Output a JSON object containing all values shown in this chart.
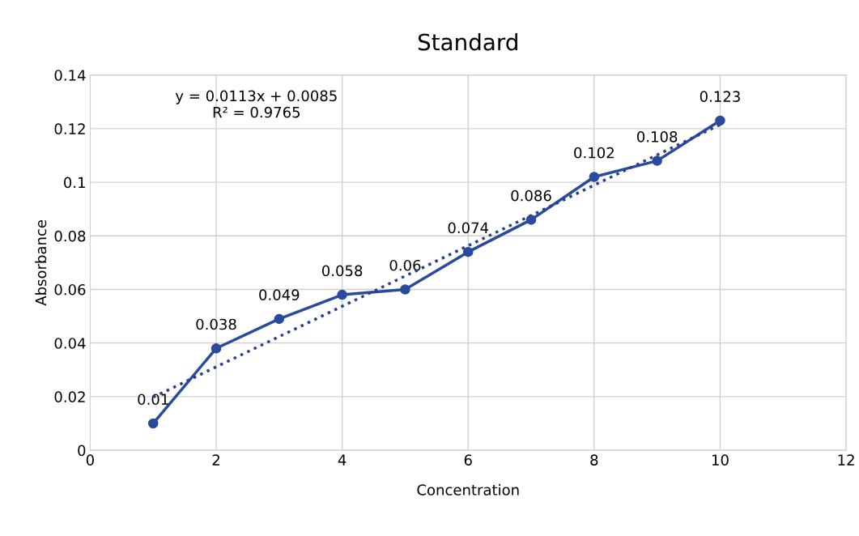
{
  "chart_data": {
    "type": "line",
    "title": "Standard",
    "xlabel": "Concentration",
    "ylabel": "Absorbance",
    "xlim": [
      0,
      12
    ],
    "xticks": [
      0,
      2,
      4,
      6,
      8,
      10,
      12
    ],
    "ylim": [
      0,
      0.14
    ],
    "yticks": [
      0,
      0.02,
      0.04,
      0.06,
      0.08,
      0.1,
      0.12,
      0.14
    ],
    "grid": true,
    "marker": "circle",
    "annotations": [
      "y = 0.0113x + 0.0085\nR² = 0.9765"
    ],
    "series": [
      {
        "color": "#2a4a9c",
        "x": [
          1,
          2,
          3,
          4,
          5,
          6,
          7,
          8,
          9,
          10
        ],
        "values": [
          0.01,
          0.038,
          0.049,
          0.058,
          0.06,
          0.074,
          0.086,
          0.102,
          0.108,
          0.123
        ],
        "line_style": "solid",
        "value_labels": [
          "0.01",
          "0.038",
          "0.049",
          "0.058",
          "0.06",
          "0.074",
          "0.086",
          "0.102",
          "0.108",
          "0.123"
        ]
      },
      {
        "color": "#2a3f8f",
        "x": [
          1,
          10
        ],
        "values": [
          0.0198,
          0.1215
        ],
        "line_style": "dotted",
        "marker": "none"
      }
    ]
  }
}
